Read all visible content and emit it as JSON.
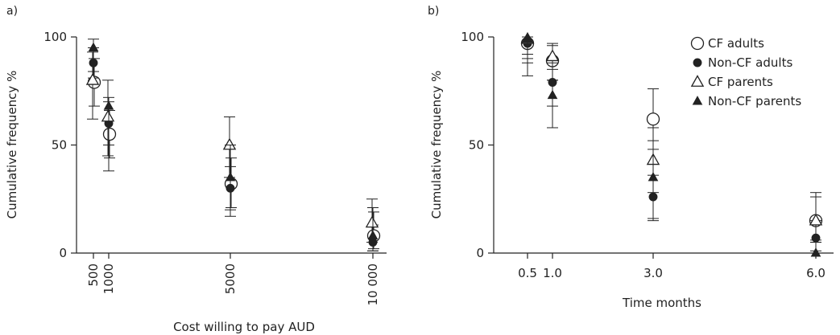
{
  "chart_data": [
    {
      "panel_label": "a)",
      "type": "scatter",
      "xlabel": "Cost willing to pay AUD",
      "ylabel": "Cumulative frequency %",
      "ylim": [
        0,
        100
      ],
      "x_ticks": [
        500,
        1000,
        5000,
        10000
      ],
      "x_tick_labels": [
        "500",
        "1000",
        "5000",
        "10 000"
      ],
      "y_ticks": [
        0,
        50,
        100
      ],
      "y_tick_labels": [
        "0",
        "50",
        "100"
      ],
      "grid": false,
      "series": [
        {
          "name": "CF adults",
          "marker": "open-circle",
          "points": [
            {
              "x": 500,
              "y": 79,
              "low": 68,
              "high": 90
            },
            {
              "x": 1000,
              "y": 55,
              "low": 44,
              "high": 66
            },
            {
              "x": 5000,
              "y": 32,
              "low": 21,
              "high": 44
            },
            {
              "x": 10000,
              "y": 8,
              "low": 2,
              "high": 19
            }
          ]
        },
        {
          "name": "Non-CF adults",
          "marker": "filled-circle",
          "points": [
            {
              "x": 500,
              "y": 88,
              "low": 81,
              "high": 95
            },
            {
              "x": 1000,
              "y": 60,
              "low": 50,
              "high": 70
            },
            {
              "x": 5000,
              "y": 30,
              "low": 20,
              "high": 40
            },
            {
              "x": 10000,
              "y": 5,
              "low": 1,
              "high": 13
            }
          ]
        },
        {
          "name": "CF parents",
          "marker": "open-triangle",
          "points": [
            {
              "x": 500,
              "y": 80,
              "low": 62,
              "high": 93
            },
            {
              "x": 1000,
              "y": 63,
              "low": 45,
              "high": 80
            },
            {
              "x": 5000,
              "y": 50,
              "low": 35,
              "high": 63
            },
            {
              "x": 10000,
              "y": 14,
              "low": 5,
              "high": 25
            }
          ]
        },
        {
          "name": "Non-CF parents",
          "marker": "filled-triangle",
          "points": [
            {
              "x": 500,
              "y": 95,
              "low": 84,
              "high": 99
            },
            {
              "x": 1000,
              "y": 68,
              "low": 38,
              "high": 72
            },
            {
              "x": 5000,
              "y": 35,
              "low": 17,
              "high": 50
            },
            {
              "x": 10000,
              "y": 8,
              "low": 1,
              "high": 21
            }
          ]
        }
      ]
    },
    {
      "panel_label": "b)",
      "type": "scatter",
      "xlabel": "Time months",
      "ylabel": "Cumulative frequency %",
      "ylim": [
        0,
        100
      ],
      "x_ticks": [
        0.5,
        1.0,
        3.0,
        6.0
      ],
      "x_tick_labels": [
        "0.5",
        "1.0",
        "3.0",
        "6.0"
      ],
      "y_ticks": [
        0,
        50,
        100
      ],
      "y_tick_labels": [
        "0",
        "50",
        "100"
      ],
      "grid": false,
      "legend_position": "top-right",
      "series": [
        {
          "name": "CF adults",
          "marker": "open-circle",
          "points": [
            {
              "x": 0.5,
              "y": 97,
              "low": 88,
              "high": 100
            },
            {
              "x": 1.0,
              "y": 89,
              "low": 80,
              "high": 96
            },
            {
              "x": 3.0,
              "y": 62,
              "low": 48,
              "high": 76
            },
            {
              "x": 6.0,
              "y": 15,
              "low": 5,
              "high": 28
            }
          ]
        },
        {
          "name": "Non-CF adults",
          "marker": "filled-circle",
          "points": [
            {
              "x": 0.5,
              "y": 97,
              "low": 90,
              "high": 100
            },
            {
              "x": 1.0,
              "y": 79,
              "low": 68,
              "high": 88
            },
            {
              "x": 3.0,
              "y": 26,
              "low": 16,
              "high": 36
            },
            {
              "x": 6.0,
              "y": 7,
              "low": 1,
              "high": 15
            }
          ]
        },
        {
          "name": "CF parents",
          "marker": "open-triangle",
          "points": [
            {
              "x": 0.5,
              "y": 99,
              "low": 92,
              "high": 100
            },
            {
              "x": 1.0,
              "y": 91,
              "low": 80,
              "high": 97
            },
            {
              "x": 3.0,
              "y": 43,
              "low": 28,
              "high": 58
            },
            {
              "x": 6.0,
              "y": 15,
              "low": 5,
              "high": 26
            }
          ]
        },
        {
          "name": "Non-CF parents",
          "marker": "filled-triangle",
          "points": [
            {
              "x": 0.5,
              "y": 99,
              "low": 82,
              "high": 100
            },
            {
              "x": 1.0,
              "y": 73,
              "low": 58,
              "high": 85
            },
            {
              "x": 3.0,
              "y": 35,
              "low": 15,
              "high": 52
            },
            {
              "x": 6.0,
              "y": 0,
              "low": 0,
              "high": 6
            }
          ]
        }
      ]
    }
  ]
}
